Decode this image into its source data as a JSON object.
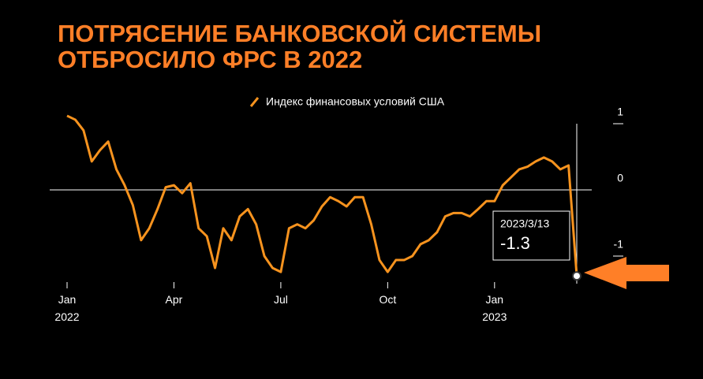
{
  "chart_data": {
    "type": "line",
    "title": [
      "ПОТРЯСЕНИЕ БАНКОВСКОЙ СИСТЕМЫ",
      "ОТБРОСИЛО ФРС В 2022"
    ],
    "categories": [
      "Jan 2022",
      null,
      null,
      null,
      null,
      null,
      null,
      null,
      null,
      null,
      null,
      null,
      null,
      "Apr",
      null,
      null,
      null,
      null,
      null,
      null,
      null,
      null,
      null,
      null,
      null,
      null,
      "Jul",
      null,
      null,
      null,
      null,
      null,
      null,
      null,
      null,
      null,
      null,
      null,
      null,
      "Oct",
      null,
      null,
      null,
      null,
      null,
      null,
      null,
      null,
      null,
      null,
      null,
      null,
      "Jan 2023",
      null,
      null,
      null,
      null,
      null,
      null,
      null,
      null,
      null,
      null
    ],
    "series": [
      {
        "name": "Индекс финансовых условий США",
        "color": "#f7931e",
        "values": [
          1.12,
          1.06,
          0.9,
          0.43,
          0.6,
          0.73,
          0.31,
          0.07,
          -0.23,
          -0.76,
          -0.58,
          -0.29,
          0.04,
          0.07,
          -0.05,
          0.1,
          -0.58,
          -0.7,
          -1.18,
          -0.58,
          -0.76,
          -0.4,
          -0.29,
          -0.52,
          -1.0,
          -1.18,
          -1.24,
          -0.58,
          -0.52,
          -0.58,
          -0.46,
          -0.25,
          -0.11,
          -0.17,
          -0.25,
          -0.11,
          -0.11,
          -0.52,
          -1.06,
          -1.24,
          -1.06,
          -1.06,
          -1.0,
          -0.82,
          -0.76,
          -0.64,
          -0.4,
          -0.35,
          -0.35,
          -0.4,
          -0.29,
          -0.17,
          -0.17,
          0.07,
          0.19,
          0.31,
          0.35,
          0.43,
          0.49,
          0.43,
          0.31,
          0.37,
          -1.3
        ]
      }
    ],
    "ylim": [
      -1.4,
      1.2
    ],
    "yticks": [
      1,
      0,
      -1
    ],
    "y_axis_side": "right",
    "annotation": {
      "date": "2023/3/13",
      "value": -1.3
    }
  }
}
